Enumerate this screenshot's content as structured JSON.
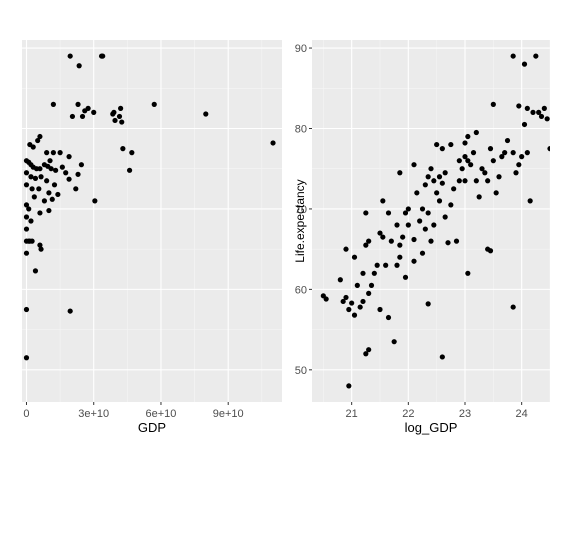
{
  "chart_data": [
    {
      "type": "scatter",
      "xlabel": "GDP",
      "ylabel": "",
      "xlim": [
        -2000000000,
        114000000000
      ],
      "ylim": [
        46,
        91
      ],
      "xticks": [
        {
          "value": 0,
          "label": "0"
        },
        {
          "value": 30000000000,
          "label": "3e+10"
        },
        {
          "value": 60000000000,
          "label": "6e+10"
        },
        {
          "value": 90000000000,
          "label": "9e+10"
        }
      ],
      "yticks": [
        50,
        60,
        70,
        80,
        90
      ],
      "grid": true,
      "background": "#ebebeb",
      "point_color": "#000000",
      "points": [
        [
          19500000000,
          89
        ],
        [
          33500000000,
          89
        ],
        [
          34000000000,
          89
        ],
        [
          23500000000,
          87.8
        ],
        [
          12000000000,
          83
        ],
        [
          23000000000,
          83
        ],
        [
          27500000000,
          82.5
        ],
        [
          26000000000,
          82.2
        ],
        [
          30000000000,
          82
        ],
        [
          39000000000,
          82
        ],
        [
          42000000000,
          82.5
        ],
        [
          57000000000,
          83
        ],
        [
          80000000000,
          81.8
        ],
        [
          20500000000,
          81.5
        ],
        [
          25000000000,
          81.5
        ],
        [
          38500000000,
          81.8
        ],
        [
          41500000000,
          81.5
        ],
        [
          39500000000,
          81
        ],
        [
          42500000000,
          80.8
        ],
        [
          6000000000,
          79
        ],
        [
          5000000000,
          78.5
        ],
        [
          1500000000,
          78
        ],
        [
          3000000000,
          77.7
        ],
        [
          9000000000,
          77
        ],
        [
          12000000000,
          77
        ],
        [
          15000000000,
          77
        ],
        [
          19000000000,
          76.5
        ],
        [
          10500000000,
          76
        ],
        [
          43000000000,
          77.5
        ],
        [
          47000000000,
          77
        ],
        [
          110000000000,
          78.2
        ],
        [
          0,
          76
        ],
        [
          1000000000,
          75.8
        ],
        [
          2000000000,
          75.5
        ],
        [
          3000000000,
          75.2
        ],
        [
          4500000000,
          75
        ],
        [
          6000000000,
          75
        ],
        [
          8000000000,
          75.5
        ],
        [
          9500000000,
          75.3
        ],
        [
          11000000000,
          75
        ],
        [
          13000000000,
          74.8
        ],
        [
          16000000000,
          75.2
        ],
        [
          24500000000,
          75.5
        ],
        [
          23000000000,
          74.3
        ],
        [
          46000000000,
          74.8
        ],
        [
          0,
          74.5
        ],
        [
          2000000000,
          74
        ],
        [
          4000000000,
          73.8
        ],
        [
          6500000000,
          74
        ],
        [
          9000000000,
          73.5
        ],
        [
          12500000000,
          73
        ],
        [
          17500000000,
          74.5
        ],
        [
          19000000000,
          73.7
        ],
        [
          0,
          73
        ],
        [
          2500000000,
          72.5
        ],
        [
          5500000000,
          72.5
        ],
        [
          10000000000,
          72
        ],
        [
          14000000000,
          71.8
        ],
        [
          22000000000,
          72.5
        ],
        [
          3500000000,
          71.5
        ],
        [
          8000000000,
          71
        ],
        [
          11500000000,
          71.2
        ],
        [
          30500000000,
          71
        ],
        [
          0,
          70.5
        ],
        [
          1000000000,
          70
        ],
        [
          6000000000,
          69.5
        ],
        [
          10000000000,
          69.8
        ],
        [
          0,
          69
        ],
        [
          2000000000,
          68.5
        ],
        [
          0,
          67.5
        ],
        [
          1500000000,
          66
        ],
        [
          0,
          66
        ],
        [
          1000000000,
          66
        ],
        [
          2500000000,
          66
        ],
        [
          0,
          64.5
        ],
        [
          6000000000,
          65.5
        ],
        [
          6500000000,
          65
        ],
        [
          4000000000,
          62.3
        ],
        [
          0,
          57.5
        ],
        [
          19500000000,
          57.3
        ],
        [
          0,
          51.5
        ]
      ]
    },
    {
      "type": "scatter",
      "xlabel": "log_GDP",
      "ylabel": "Life.expectancy",
      "xlim": [
        20.3,
        24.5
      ],
      "ylim": [
        46,
        91
      ],
      "xticks": [
        {
          "value": 21,
          "label": "21"
        },
        {
          "value": 22,
          "label": "22"
        },
        {
          "value": 23,
          "label": "23"
        },
        {
          "value": 24,
          "label": "24"
        }
      ],
      "yticks": [
        50,
        60,
        70,
        80,
        90
      ],
      "grid": true,
      "background": "#ebebeb",
      "point_color": "#000000",
      "points": [
        [
          20.5,
          59.2
        ],
        [
          20.55,
          58.8
        ],
        [
          20.8,
          61.2
        ],
        [
          20.85,
          58.5
        ],
        [
          20.9,
          59
        ],
        [
          20.95,
          57.5
        ],
        [
          20.9,
          65
        ],
        [
          21.0,
          58.3
        ],
        [
          21.05,
          56.8
        ],
        [
          21.05,
          64
        ],
        [
          21.1,
          60.5
        ],
        [
          21.15,
          57.8
        ],
        [
          21.2,
          62
        ],
        [
          21.2,
          58.5
        ],
        [
          21.25,
          65.5
        ],
        [
          21.25,
          52
        ],
        [
          21.3,
          52.5
        ],
        [
          21.3,
          59.5
        ],
        [
          21.35,
          60.5
        ],
        [
          21.4,
          62
        ],
        [
          21.45,
          63
        ],
        [
          21.5,
          57.5
        ],
        [
          21.55,
          66.5
        ],
        [
          21.6,
          63
        ],
        [
          21.65,
          56.5
        ],
        [
          21.75,
          53.5
        ],
        [
          21.8,
          63
        ],
        [
          21.85,
          64
        ],
        [
          21.95,
          61.5
        ],
        [
          22.1,
          63.5
        ],
        [
          22.25,
          64.5
        ],
        [
          22.35,
          58.2
        ],
        [
          22.6,
          51.6
        ],
        [
          23.05,
          62
        ],
        [
          23.4,
          65
        ],
        [
          23.45,
          64.8
        ],
        [
          23.85,
          57.8
        ],
        [
          20.95,
          48
        ],
        [
          21.25,
          69.5
        ],
        [
          21.3,
          66
        ],
        [
          21.5,
          67
        ],
        [
          21.55,
          71
        ],
        [
          21.65,
          69.5
        ],
        [
          21.7,
          66
        ],
        [
          21.8,
          68
        ],
        [
          21.85,
          65.5
        ],
        [
          21.9,
          66.5
        ],
        [
          21.95,
          69.5
        ],
        [
          22.0,
          70
        ],
        [
          22.0,
          68
        ],
        [
          22.1,
          66.2
        ],
        [
          22.15,
          72
        ],
        [
          22.2,
          68.5
        ],
        [
          22.25,
          70
        ],
        [
          22.3,
          67.5
        ],
        [
          22.35,
          69.5
        ],
        [
          22.4,
          66
        ],
        [
          22.45,
          68
        ],
        [
          21.85,
          74.5
        ],
        [
          22.1,
          75.5
        ],
        [
          22.3,
          73
        ],
        [
          22.35,
          74
        ],
        [
          22.4,
          75
        ],
        [
          22.45,
          73.5
        ],
        [
          22.5,
          72
        ],
        [
          22.55,
          74
        ],
        [
          22.55,
          71
        ],
        [
          22.6,
          73.2
        ],
        [
          22.65,
          69
        ],
        [
          22.65,
          74.5
        ],
        [
          22.7,
          65.8
        ],
        [
          22.75,
          70.5
        ],
        [
          22.8,
          72.5
        ],
        [
          22.85,
          66
        ],
        [
          22.9,
          73.5
        ],
        [
          22.95,
          75
        ],
        [
          23.0,
          73.5
        ],
        [
          23.05,
          76
        ],
        [
          22.5,
          78
        ],
        [
          22.6,
          77.5
        ],
        [
          22.75,
          78
        ],
        [
          22.9,
          76
        ],
        [
          23.0,
          76.5
        ],
        [
          23.05,
          79
        ],
        [
          23.1,
          75.5
        ],
        [
          23.15,
          77
        ],
        [
          23.2,
          79.5
        ],
        [
          23.2,
          73.5
        ],
        [
          23.25,
          71.5
        ],
        [
          23.3,
          75
        ],
        [
          23.35,
          74.5
        ],
        [
          23.4,
          73.5
        ],
        [
          23.45,
          77.5
        ],
        [
          23.5,
          76
        ],
        [
          23.55,
          72
        ],
        [
          23.6,
          74
        ],
        [
          23.65,
          76.5
        ],
        [
          23.7,
          77
        ],
        [
          23.75,
          78.5
        ],
        [
          23.85,
          77
        ],
        [
          23.9,
          74.5
        ],
        [
          23.95,
          75.5
        ],
        [
          24.0,
          76.5
        ],
        [
          23.0,
          78.2
        ],
        [
          23.5,
          83
        ],
        [
          23.85,
          89
        ],
        [
          23.95,
          82.8
        ],
        [
          24.05,
          88
        ],
        [
          24.1,
          82.5
        ],
        [
          24.15,
          71
        ],
        [
          24.2,
          82
        ],
        [
          24.25,
          89
        ],
        [
          24.3,
          82
        ],
        [
          24.35,
          81.5
        ],
        [
          24.4,
          82.5
        ],
        [
          24.45,
          81.2
        ],
        [
          24.5,
          77.5
        ],
        [
          24.05,
          80.5
        ],
        [
          24.1,
          77
        ]
      ]
    }
  ]
}
